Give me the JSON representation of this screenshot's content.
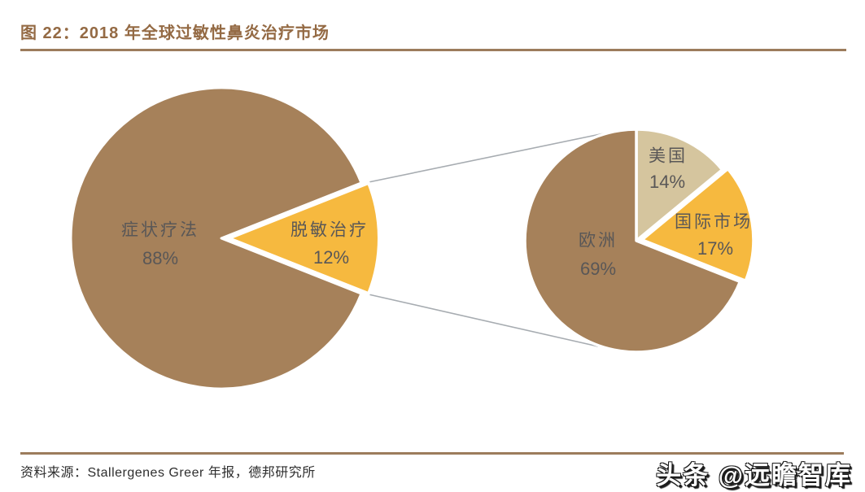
{
  "page": {
    "title": "图 22：2018 年全球过敏性鼻炎治疗市场",
    "source_note": "资料来源：Stallergenes Greer 年报，德邦研究所",
    "watermark": "头条 @远瞻智库"
  },
  "colors": {
    "pie_brown": "#A6815A",
    "pie_yellow": "#F6B93F",
    "pie_tan": "#D5C59E",
    "title_text": "#946A44",
    "divider_line": "#9C7C5C",
    "slice_label_text": "#595757",
    "source_text": "#2E2E2E",
    "callout_line": "#A7ACB1"
  },
  "chart_data": [
    {
      "type": "pie",
      "name": "2018-global-allergic-rhinitis-treatment-market",
      "title": "2018 年全球过敏性鼻炎治疗市场",
      "legend": "none",
      "labels_position": "inside",
      "slices": [
        {
          "label": "症状疗法",
          "value": 88,
          "pct": "88%",
          "color": "#A6815A",
          "exploded": false
        },
        {
          "label": "脱敏治疗",
          "value": 12,
          "pct": "12%",
          "color": "#F6B93F",
          "exploded": true
        }
      ]
    },
    {
      "type": "pie",
      "name": "desensitization-treatment-market-by-region",
      "legend": "none",
      "labels_position": "inside",
      "slices": [
        {
          "label": "美国",
          "value": 14,
          "pct": "14%",
          "color": "#D5C59E",
          "exploded": false
        },
        {
          "label": "国际市场",
          "value": 17,
          "pct": "17%",
          "color": "#F6B93F",
          "exploded": true
        },
        {
          "label": "欧洲",
          "value": 69,
          "pct": "69%",
          "color": "#A6815A",
          "exploded": false
        }
      ]
    }
  ]
}
